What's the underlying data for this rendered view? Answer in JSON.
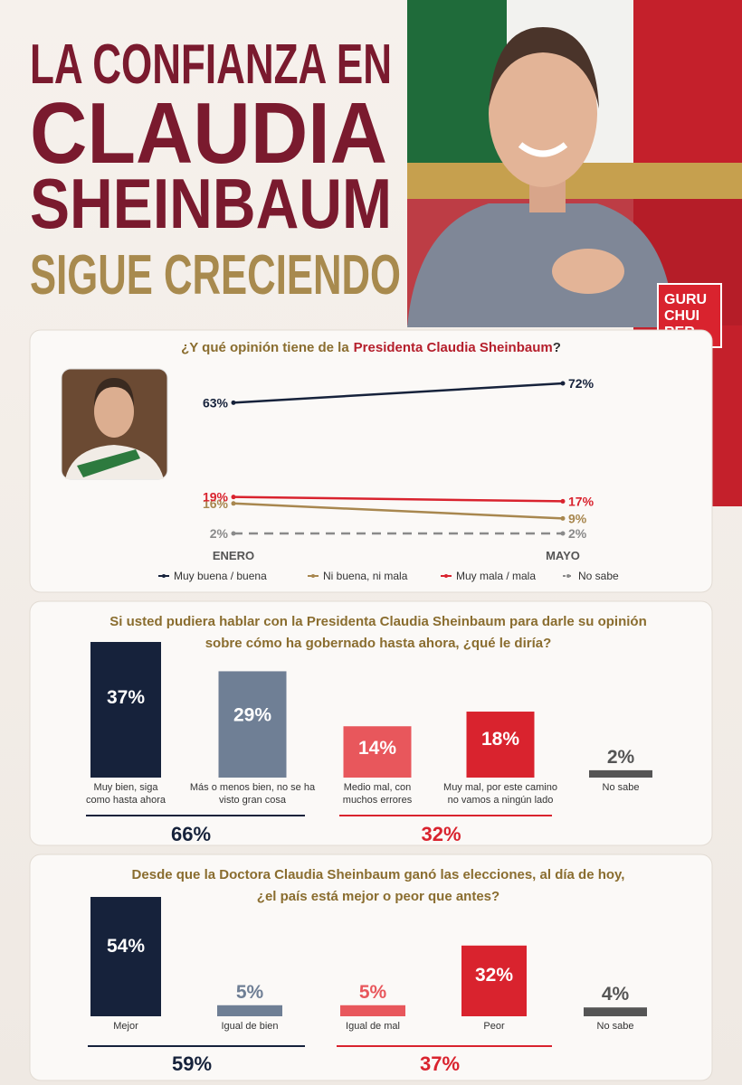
{
  "header": {
    "title_lines": [
      "LA CONFIANZA EN",
      "CLAUDIA",
      "SHEINBAUM",
      "SIGUE CRECIENDO"
    ],
    "logo": [
      "GURU",
      "CHUI",
      "RER"
    ]
  },
  "chart_data": [
    {
      "type": "line",
      "title": [
        "¿Y qué opinión tiene de la",
        "Presidenta Claudia Sheinbaum",
        "?"
      ],
      "categories": [
        "ENERO",
        "MAYO"
      ],
      "series": [
        {
          "name": "Muy buena / buena",
          "color": "#16223b",
          "values": [
            63,
            72
          ],
          "value_labels": [
            "63%",
            "72%"
          ]
        },
        {
          "name": "Ni buena, ni mala",
          "color": "#a8874f",
          "values": [
            16,
            9
          ],
          "value_labels": [
            "16%",
            "9%"
          ]
        },
        {
          "name": "Muy mala / mala",
          "color": "#d9232e",
          "values": [
            19,
            17
          ],
          "value_labels": [
            "19%",
            "17%"
          ]
        },
        {
          "name": "No sabe",
          "color": "#8a8a8a",
          "dashed": true,
          "values": [
            2,
            2
          ],
          "value_labels": [
            "2%",
            "2%"
          ]
        }
      ]
    },
    {
      "type": "bar",
      "title": [
        "Si usted pudiera hablar con la Presidenta Claudia Sheinbaum para darle su opinión",
        "sobre cómo ha gobernado hasta ahora, ¿qué le diría?"
      ],
      "categories": [
        [
          "Muy bien, siga",
          "como hasta ahora"
        ],
        [
          "Más o menos bien, no se ha",
          "visto gran cosa"
        ],
        [
          "Medio mal, con",
          "muchos errores"
        ],
        [
          "Muy mal, por este camino",
          "no vamos a ningún lado"
        ],
        [
          "No sabe"
        ]
      ],
      "values": [
        37,
        29,
        14,
        18,
        2
      ],
      "value_labels": [
        "37%",
        "29%",
        "14%",
        "18%",
        "2%"
      ],
      "colors": [
        "#16223b",
        "#6f7f95",
        "#e8575c",
        "#d9232e",
        "#555555"
      ],
      "groups": [
        {
          "value": 66,
          "label": "66%",
          "color": "#16223b"
        },
        {
          "value": 32,
          "label": "32%",
          "color": "#d9232e"
        }
      ]
    },
    {
      "type": "bar",
      "title": [
        "Desde que la Doctora Claudia Sheinbaum ganó las elecciones, al día de hoy,",
        "¿el país está mejor o peor que antes?"
      ],
      "categories": [
        [
          "Mejor"
        ],
        [
          "Igual de bien"
        ],
        [
          "Igual de mal"
        ],
        [
          "Peor"
        ],
        [
          "No sabe"
        ]
      ],
      "values": [
        54,
        5,
        5,
        32,
        4
      ],
      "value_labels": [
        "54%",
        "5%",
        "5%",
        "32%",
        "4%"
      ],
      "colors": [
        "#16223b",
        "#6f7f95",
        "#e8575c",
        "#d9232e",
        "#555555"
      ],
      "groups": [
        {
          "value": 59,
          "label": "59%",
          "color": "#16223b"
        },
        {
          "value": 37,
          "label": "37%",
          "color": "#d9232e"
        }
      ]
    }
  ]
}
